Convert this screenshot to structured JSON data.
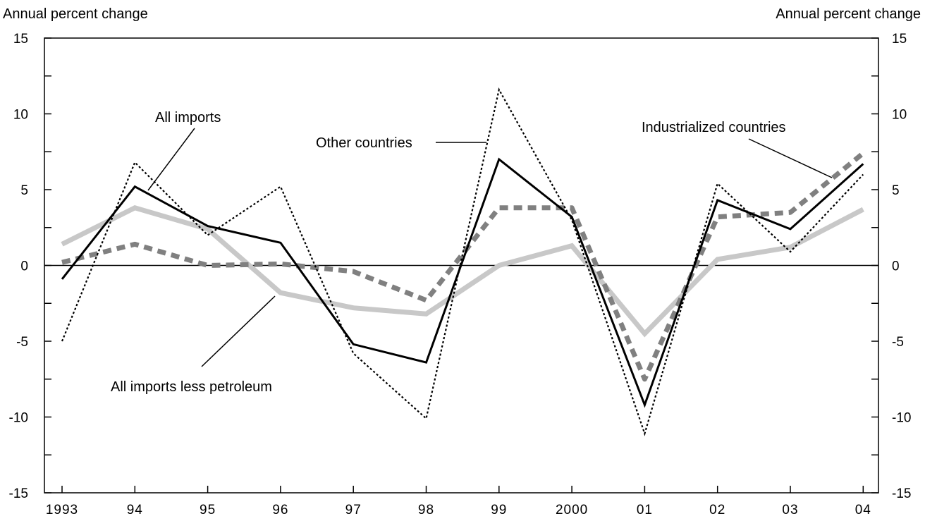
{
  "chart_data": {
    "type": "line",
    "ylabel_left": "Annual percent change",
    "ylabel_right": "Annual percent change",
    "x": [
      1993,
      1994,
      1995,
      1996,
      1997,
      1998,
      1999,
      2000,
      2001,
      2002,
      2003,
      2004
    ],
    "x_tick_labels": [
      "1993",
      "94",
      "95",
      "96",
      "97",
      "98",
      "99",
      "2000",
      "01",
      "02",
      "03",
      "04"
    ],
    "ylim": [
      -15,
      15
    ],
    "y_ticks": [
      15,
      10,
      5,
      0,
      -5,
      -10,
      -15
    ],
    "y_tick_labels": [
      "15",
      "10",
      "5",
      "0",
      "-5",
      "-10",
      "-15"
    ],
    "zero_line": true,
    "grid": false,
    "series": [
      {
        "name": "All imports less petroleum",
        "style": "thick-solid",
        "color": "#c8c8c8",
        "values": [
          1.4,
          3.8,
          2.4,
          -1.8,
          -2.8,
          -3.2,
          0.0,
          1.3,
          -4.5,
          0.4,
          1.2,
          3.7
        ]
      },
      {
        "name": "Industrialized countries",
        "style": "thick-dashed",
        "color": "#808080",
        "values": [
          0.2,
          1.4,
          0.0,
          0.1,
          -0.4,
          -2.3,
          3.8,
          3.8,
          -7.5,
          3.2,
          3.5,
          7.4
        ]
      },
      {
        "name": "Other countries",
        "style": "dotted",
        "color": "#000000",
        "values": [
          -5.0,
          6.8,
          2.0,
          5.2,
          -5.8,
          -10.1,
          11.6,
          3.0,
          -11.1,
          5.4,
          0.9,
          6.0
        ]
      },
      {
        "name": "All imports",
        "style": "solid",
        "color": "#000000",
        "values": [
          -0.9,
          5.2,
          2.6,
          1.5,
          -5.2,
          -6.4,
          7.0,
          3.2,
          -9.2,
          4.3,
          2.4,
          6.7
        ]
      }
    ],
    "annotations": {
      "all_imports": "All imports",
      "other_countries": "Other countries",
      "industrialized_countries": "Industrialized countries",
      "all_imports_less_petroleum": "All imports less petroleum"
    }
  }
}
